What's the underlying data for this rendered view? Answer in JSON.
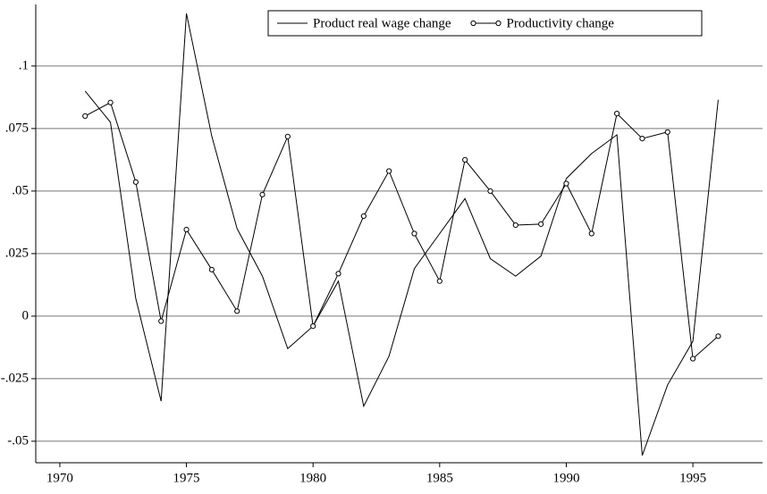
{
  "chart_data": {
    "type": "line",
    "x": [
      1971,
      1972,
      1973,
      1974,
      1975,
      1976,
      1977,
      1978,
      1979,
      1980,
      1981,
      1982,
      1983,
      1984,
      1985,
      1986,
      1987,
      1988,
      1989,
      1990,
      1991,
      1992,
      1993,
      1994,
      1995,
      1996
    ],
    "series": [
      {
        "name": "Product real wage change",
        "color": "#000000",
        "marker": false,
        "values": [
          0.09,
          0.0775,
          0.007,
          -0.034,
          0.121,
          0.072,
          0.035,
          0.016,
          -0.013,
          -0.004,
          0.014,
          -0.036,
          -0.016,
          0.019,
          0.033,
          0.047,
          0.023,
          0.016,
          0.024,
          0.055,
          0.065,
          0.0725,
          -0.0557,
          -0.0275,
          -0.01,
          0.0865
        ]
      },
      {
        "name": "Productivity change",
        "color": "#000000",
        "marker": true,
        "values": [
          0.08,
          0.0854,
          0.0536,
          -0.002,
          0.0346,
          0.0186,
          0.002,
          0.0486,
          0.0718,
          -0.004,
          0.017,
          0.04,
          0.058,
          0.033,
          0.014,
          0.0625,
          0.05,
          0.0364,
          0.0368,
          0.053,
          0.033,
          0.081,
          0.071,
          0.0736,
          -0.017,
          -0.008
        ]
      }
    ],
    "xlim": [
      1969.05,
      1997.75
    ],
    "ylim": [
      -0.0586,
      0.1246
    ],
    "xticks": [
      1970,
      1975,
      1980,
      1985,
      1990,
      1995
    ],
    "yticks": [
      {
        "value": -0.05,
        "label": "-.05"
      },
      {
        "value": -0.025,
        "label": "-.025"
      },
      0,
      {
        "value": 0.025,
        "label": ".025"
      },
      {
        "value": 0.05,
        "label": ".05"
      },
      {
        "value": 0.075,
        "label": ".075"
      },
      {
        "value": 0.1,
        "label": ".1"
      }
    ],
    "grid": true,
    "legend": "top-right"
  }
}
